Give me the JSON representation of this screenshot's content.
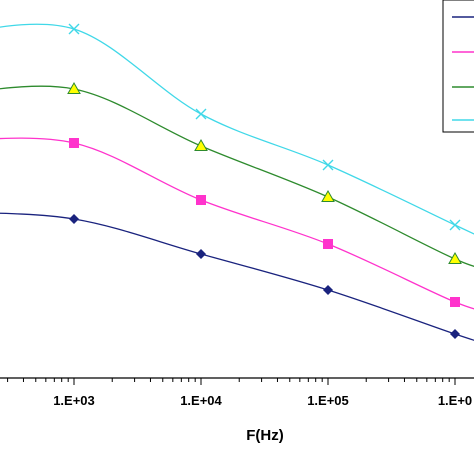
{
  "chart_data": {
    "type": "line",
    "xscale": "log",
    "xlabel": "F(Hz)",
    "ylabel": "",
    "xticks": [
      {
        "value": 1000,
        "label": "1.E+03"
      },
      {
        "value": 10000,
        "label": "1.E+04"
      },
      {
        "value": 100000,
        "label": "1.E+05"
      },
      {
        "value": 1000000,
        "label": "1.E+0"
      }
    ],
    "x": [
      100,
      1000,
      10000,
      100000,
      1000000,
      2000000
    ],
    "series": [
      {
        "color": "#1a237e",
        "marker": "diamond",
        "values": [
          212,
          219,
          254,
          290,
          334,
          346
        ]
      },
      {
        "color": "#ff33cc",
        "marker": "square",
        "values": [
          141,
          143,
          200,
          244,
          302,
          312
        ]
      },
      {
        "color": "#2e8b2e",
        "marker": "triangle",
        "values": [
          95,
          89,
          146,
          197,
          259,
          270
        ]
      },
      {
        "color": "#40d8e8",
        "marker": "cross",
        "values": [
          35,
          29,
          114,
          165,
          225,
          243
        ]
      }
    ],
    "legend": {
      "position": "top-right",
      "entries": [
        "",
        "",
        "",
        ""
      ]
    },
    "grid": false
  }
}
